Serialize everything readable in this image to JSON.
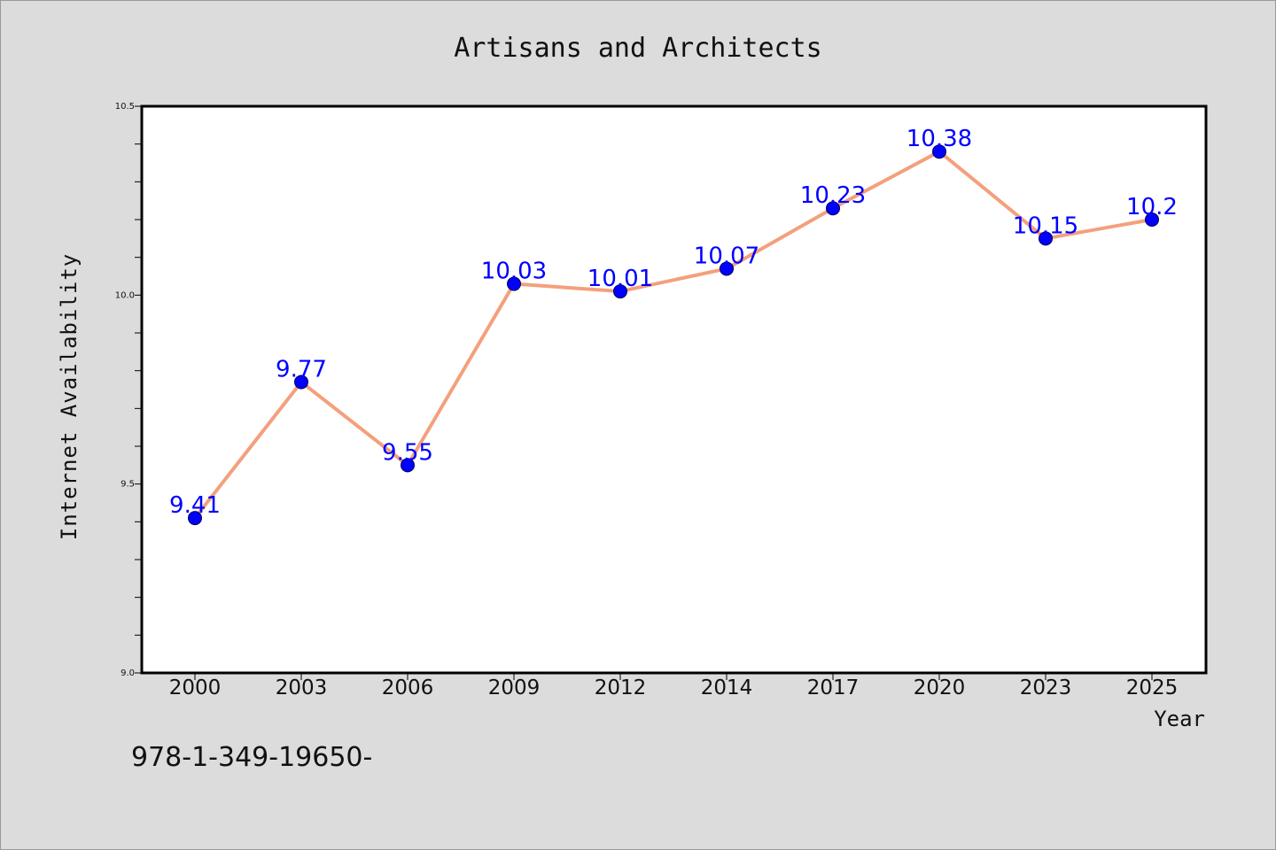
{
  "chart_data": {
    "type": "line",
    "title": "Artisans and Architects",
    "xlabel": "Year",
    "ylabel": "Internet Availability",
    "categories": [
      "2000",
      "2003",
      "2006",
      "2009",
      "2012",
      "2014",
      "2017",
      "2020",
      "2023",
      "2025"
    ],
    "values": [
      9.41,
      9.77,
      9.55,
      10.03,
      10.01,
      10.07,
      10.23,
      10.38,
      10.15,
      10.2
    ],
    "data_labels": [
      "9.41",
      "9.77",
      "9.55",
      "10.03",
      "10.01",
      "10.07",
      "10.23",
      "10.38",
      "10.15",
      "10.2"
    ],
    "ylim": [
      9.0,
      10.5
    ],
    "y_ticks": [
      "9.0",
      "9.5",
      "10.0",
      "10.5"
    ],
    "grid": false,
    "line_color": "#f4a07c",
    "marker_color": "#0000ff",
    "label_color": "#0000ff"
  },
  "footer_text": "978-1-349-19650-"
}
